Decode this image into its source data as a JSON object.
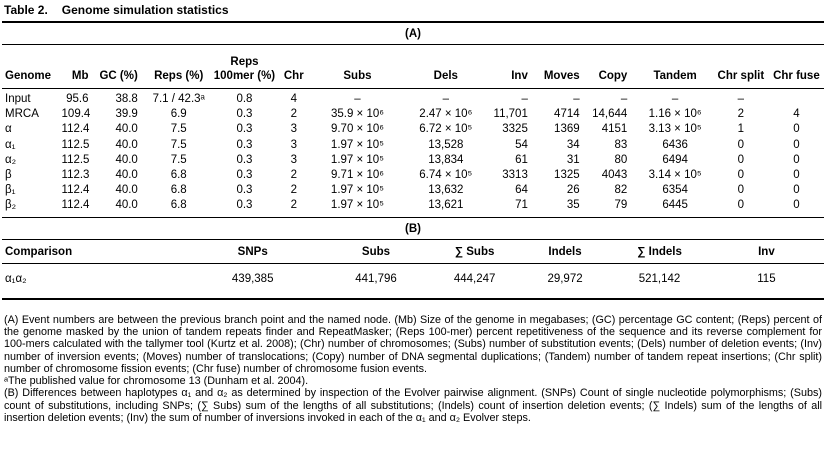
{
  "title": {
    "label": "Table 2.",
    "text": "Genome simulation statistics"
  },
  "sectionA": {
    "heading": "(A)",
    "columns": [
      "Genome",
      "Mb",
      "GC (%)",
      "Reps (%)",
      "Reps\n100mer (%)",
      "Chr",
      "Subs",
      "Dels",
      "Inv",
      "Moves",
      "Copy",
      "Tandem",
      "Chr split",
      "Chr fuse"
    ],
    "rows": [
      [
        "Input",
        "95.6",
        "38.8",
        "7.1 / 42.3ᵃ",
        "0.8",
        "4",
        "–",
        "–",
        "–",
        "–",
        "–",
        "–",
        "–",
        ""
      ],
      [
        "MRCA",
        "109.4",
        "39.9",
        "6.9",
        "0.3",
        "2",
        "35.9 × 10⁶",
        "2.47 × 10⁶",
        "11,701",
        "4714",
        "14,644",
        "1.16 × 10⁶",
        "2",
        "4"
      ],
      [
        "α",
        "112.4",
        "40.0",
        "7.5",
        "0.3",
        "3",
        "9.70 × 10⁶",
        "6.72 × 10⁵",
        "3325",
        "1369",
        "4151",
        "3.13 × 10⁵",
        "1",
        "0"
      ],
      [
        "α₁",
        "112.5",
        "40.0",
        "7.5",
        "0.3",
        "3",
        "1.97 × 10⁵",
        "13,528",
        "54",
        "34",
        "83",
        "6436",
        "0",
        "0"
      ],
      [
        "α₂",
        "112.5",
        "40.0",
        "7.5",
        "0.3",
        "3",
        "1.97 × 10⁵",
        "13,834",
        "61",
        "31",
        "80",
        "6494",
        "0",
        "0"
      ],
      [
        "β",
        "112.3",
        "40.0",
        "6.8",
        "0.3",
        "2",
        "9.71 × 10⁶",
        "6.74 × 10⁵",
        "3313",
        "1325",
        "4043",
        "3.14 × 10⁵",
        "0",
        "0"
      ],
      [
        "β₁",
        "112.4",
        "40.0",
        "6.8",
        "0.3",
        "2",
        "1.97 × 10⁵",
        "13,632",
        "64",
        "26",
        "82",
        "6354",
        "0",
        "0"
      ],
      [
        "β₂",
        "112.4",
        "40.0",
        "6.8",
        "0.3",
        "2",
        "1.97 × 10⁵",
        "13,621",
        "71",
        "35",
        "79",
        "6445",
        "0",
        "0"
      ]
    ]
  },
  "sectionB": {
    "heading": "(B)",
    "columns": [
      "Comparison",
      "SNPs",
      "Subs",
      "∑ Subs",
      "Indels",
      "∑ Indels",
      "Inv"
    ],
    "rows": [
      [
        "α₁α₂",
        "439,385",
        "441,796",
        "444,247",
        "29,972",
        "521,142",
        "115"
      ]
    ]
  },
  "footnotes": {
    "note_a": "(A) Event numbers are between the previous branch point and the named node. (Mb) Size of the genome in megabases; (GC) percentage GC content; (Reps) percent of the genome masked by the union of tandem repeats finder and RepeatMasker; (Reps 100-mer) percent repetitiveness of the sequence and its reverse complement for 100-mers calculated with the tallymer tool (Kurtz et al. 2008); (Chr) number of chromosomes; (Subs) number of substitution events; (Dels) number of deletion events; (Inv) number of inversion events; (Moves) number of translocations; (Copy) number of DNA segmental duplications; (Tandem) number of tandem repeat insertions; (Chr split) number of chromosome fission events; (Chr fuse) number of chromosome fusion events.",
    "note_sup_a": "ᵃThe published value for chromosome 13 (Dunham et al. 2004).",
    "note_b": "(B) Differences between haplotypes α₁ and α₂ as determined by inspection of the Evolver pairwise alignment. (SNPs) Count of single nucleotide polymorphisms; (Subs) count of substitutions, including SNPs; (∑ Subs) sum of the lengths of all substitutions; (Indels) count of insertion deletion events; (∑ Indels) sum of the lengths of all insertion deletion events; (Inv) the sum of number of inversions invoked in each of the α₁ and α₂ Evolver steps."
  }
}
